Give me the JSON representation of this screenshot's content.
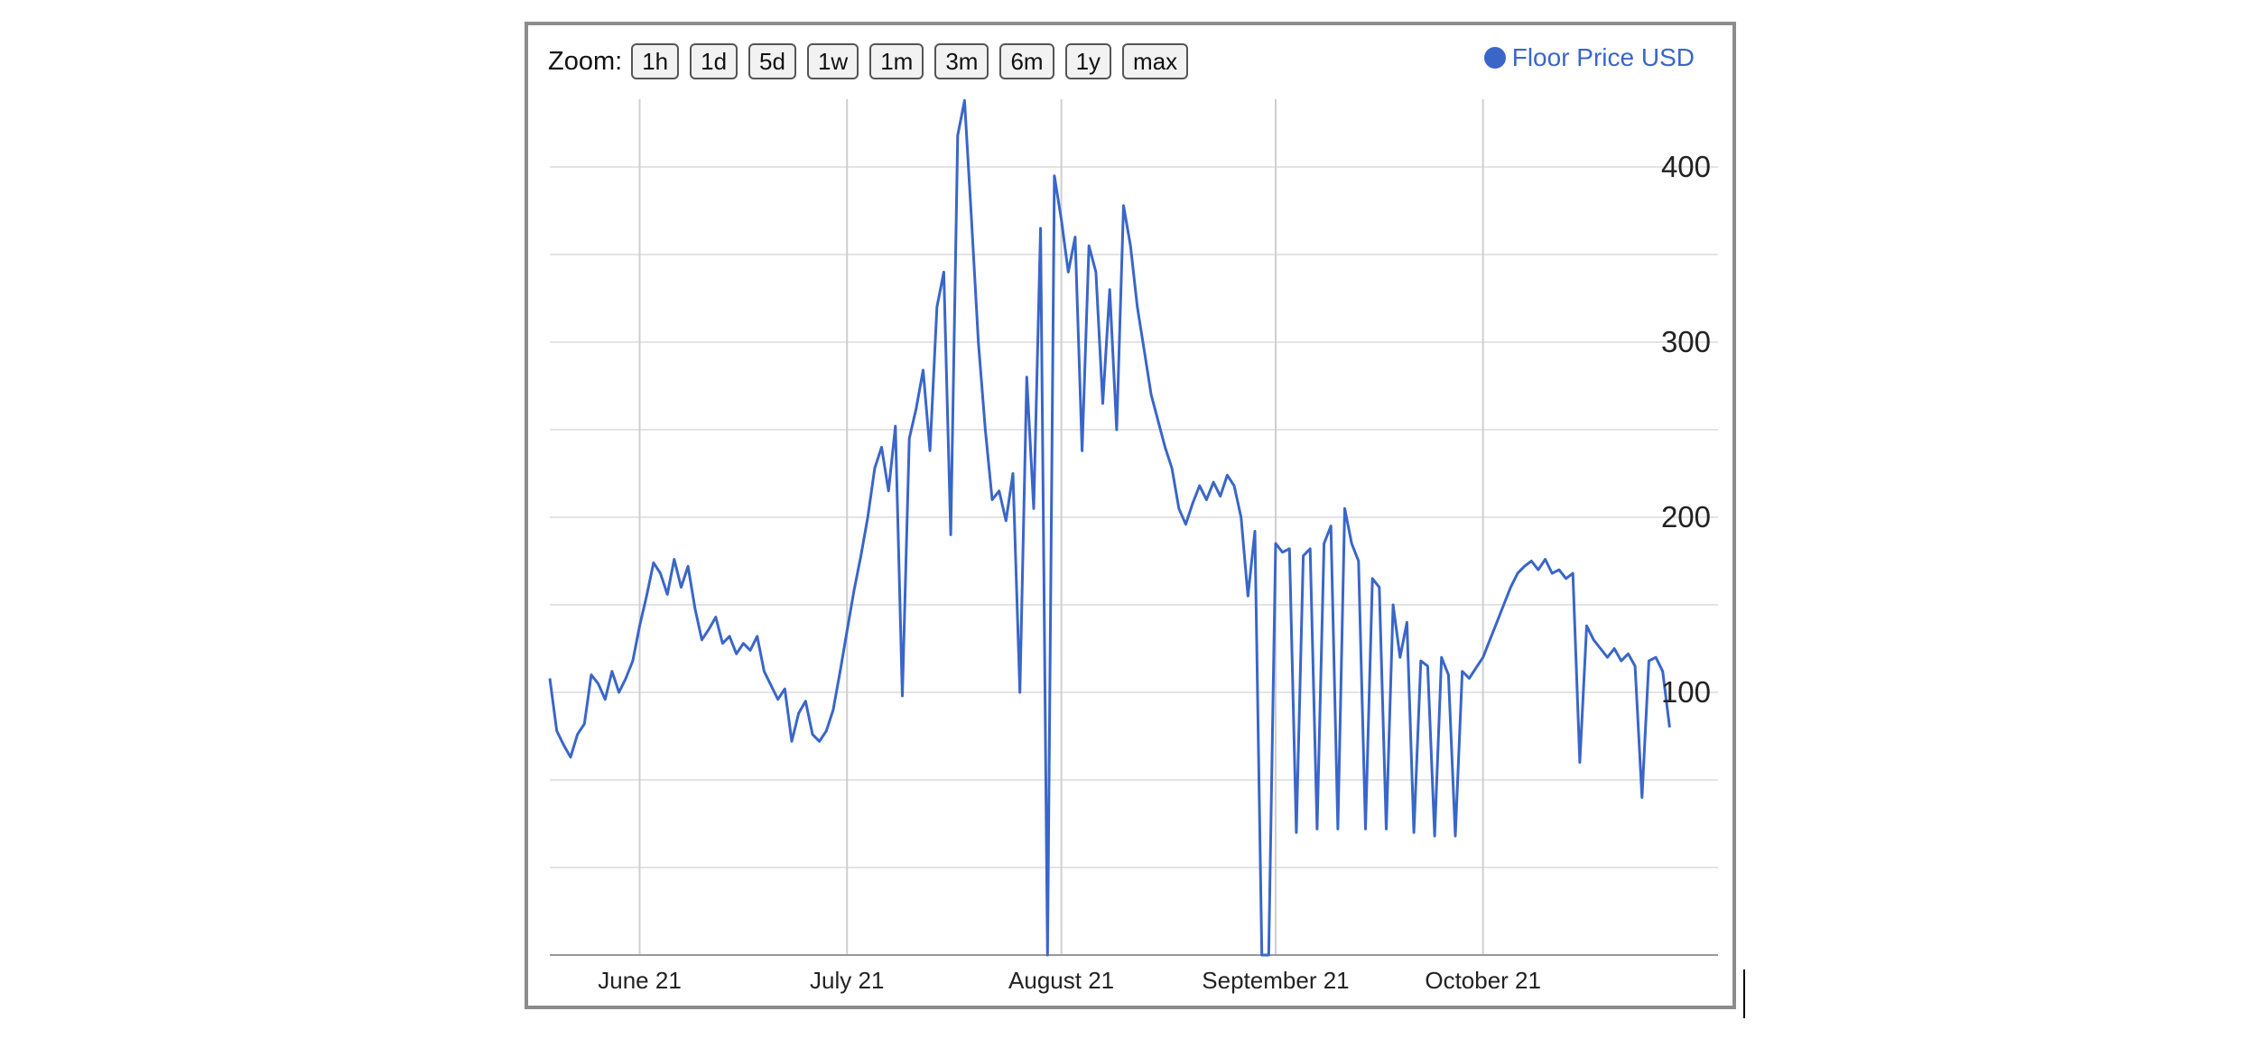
{
  "toolbar": {
    "zoom_label": "Zoom:",
    "buttons": [
      "1h",
      "1d",
      "5d",
      "1w",
      "1m",
      "3m",
      "6m",
      "1y",
      "max"
    ]
  },
  "legend": {
    "label": "Floor Price USD",
    "color": "#3a66c9"
  },
  "chart_data": {
    "type": "line",
    "title": "",
    "xlabel": "",
    "ylabel": "",
    "ylim": [
      -50,
      400
    ],
    "xlim": [
      "2021-05-31",
      "2021-11-16"
    ],
    "y_ticks": [
      100,
      200,
      300,
      400
    ],
    "x_ticks": [
      {
        "date": "2021-06-13",
        "label": "June 21"
      },
      {
        "date": "2021-07-13",
        "label": "July 21"
      },
      {
        "date": "2021-08-13",
        "label": "August 21"
      },
      {
        "date": "2021-09-13",
        "label": "September 21"
      },
      {
        "date": "2021-10-13",
        "label": "October 21"
      }
    ],
    "grid": true,
    "legend_position": "top-right",
    "series": [
      {
        "name": "Floor Price USD",
        "color": "#3a66c9",
        "points": [
          [
            "2021-05-31",
            108
          ],
          [
            "2021-06-01",
            78
          ],
          [
            "2021-06-02",
            70
          ],
          [
            "2021-06-03",
            63
          ],
          [
            "2021-06-04",
            76
          ],
          [
            "2021-06-05",
            82
          ],
          [
            "2021-06-06",
            110
          ],
          [
            "2021-06-07",
            105
          ],
          [
            "2021-06-08",
            96
          ],
          [
            "2021-06-09",
            112
          ],
          [
            "2021-06-10",
            100
          ],
          [
            "2021-06-11",
            108
          ],
          [
            "2021-06-12",
            118
          ],
          [
            "2021-06-13",
            138
          ],
          [
            "2021-06-14",
            155
          ],
          [
            "2021-06-15",
            174
          ],
          [
            "2021-06-16",
            168
          ],
          [
            "2021-06-17",
            156
          ],
          [
            "2021-06-18",
            176
          ],
          [
            "2021-06-19",
            160
          ],
          [
            "2021-06-20",
            172
          ],
          [
            "2021-06-21",
            148
          ],
          [
            "2021-06-22",
            130
          ],
          [
            "2021-06-23",
            136
          ],
          [
            "2021-06-24",
            143
          ],
          [
            "2021-06-25",
            128
          ],
          [
            "2021-06-26",
            132
          ],
          [
            "2021-06-27",
            122
          ],
          [
            "2021-06-28",
            128
          ],
          [
            "2021-06-29",
            124
          ],
          [
            "2021-06-30",
            132
          ],
          [
            "2021-07-01",
            112
          ],
          [
            "2021-07-02",
            104
          ],
          [
            "2021-07-03",
            96
          ],
          [
            "2021-07-04",
            102
          ],
          [
            "2021-07-05",
            72
          ],
          [
            "2021-07-06",
            88
          ],
          [
            "2021-07-07",
            95
          ],
          [
            "2021-07-08",
            76
          ],
          [
            "2021-07-09",
            72
          ],
          [
            "2021-07-10",
            78
          ],
          [
            "2021-07-11",
            90
          ],
          [
            "2021-07-12",
            112
          ],
          [
            "2021-07-13",
            135
          ],
          [
            "2021-07-14",
            158
          ],
          [
            "2021-07-15",
            178
          ],
          [
            "2021-07-16",
            200
          ],
          [
            "2021-07-17",
            228
          ],
          [
            "2021-07-18",
            240
          ],
          [
            "2021-07-19",
            215
          ],
          [
            "2021-07-20",
            252
          ],
          [
            "2021-07-21",
            98
          ],
          [
            "2021-07-22",
            245
          ],
          [
            "2021-07-23",
            262
          ],
          [
            "2021-07-24",
            284
          ],
          [
            "2021-07-25",
            238
          ],
          [
            "2021-07-26",
            320
          ],
          [
            "2021-07-27",
            340
          ],
          [
            "2021-07-28",
            190
          ],
          [
            "2021-07-29",
            418
          ],
          [
            "2021-07-30",
            438
          ],
          [
            "2021-07-31",
            370
          ],
          [
            "2021-08-01",
            300
          ],
          [
            "2021-08-02",
            250
          ],
          [
            "2021-08-03",
            210
          ],
          [
            "2021-08-04",
            215
          ],
          [
            "2021-08-05",
            198
          ],
          [
            "2021-08-06",
            225
          ],
          [
            "2021-08-07",
            100
          ],
          [
            "2021-08-08",
            280
          ],
          [
            "2021-08-09",
            205
          ],
          [
            "2021-08-10",
            365
          ],
          [
            "2021-08-11",
            -50
          ],
          [
            "2021-08-12",
            395
          ],
          [
            "2021-08-13",
            370
          ],
          [
            "2021-08-14",
            340
          ],
          [
            "2021-08-15",
            360
          ],
          [
            "2021-08-16",
            238
          ],
          [
            "2021-08-17",
            355
          ],
          [
            "2021-08-18",
            340
          ],
          [
            "2021-08-19",
            265
          ],
          [
            "2021-08-20",
            330
          ],
          [
            "2021-08-21",
            250
          ],
          [
            "2021-08-22",
            378
          ],
          [
            "2021-08-23",
            355
          ],
          [
            "2021-08-24",
            320
          ],
          [
            "2021-08-25",
            295
          ],
          [
            "2021-08-26",
            270
          ],
          [
            "2021-08-27",
            255
          ],
          [
            "2021-08-28",
            240
          ],
          [
            "2021-08-29",
            228
          ],
          [
            "2021-08-30",
            205
          ],
          [
            "2021-08-31",
            196
          ],
          [
            "2021-09-01",
            208
          ],
          [
            "2021-09-02",
            218
          ],
          [
            "2021-09-03",
            210
          ],
          [
            "2021-09-04",
            220
          ],
          [
            "2021-09-05",
            212
          ],
          [
            "2021-09-06",
            224
          ],
          [
            "2021-09-07",
            218
          ],
          [
            "2021-09-08",
            200
          ],
          [
            "2021-09-09",
            155
          ],
          [
            "2021-09-10",
            192
          ],
          [
            "2021-09-11",
            -50
          ],
          [
            "2021-09-12",
            -50
          ],
          [
            "2021-09-13",
            185
          ],
          [
            "2021-09-14",
            180
          ],
          [
            "2021-09-15",
            182
          ],
          [
            "2021-09-16",
            20
          ],
          [
            "2021-09-17",
            178
          ],
          [
            "2021-09-18",
            182
          ],
          [
            "2021-09-19",
            22
          ],
          [
            "2021-09-20",
            185
          ],
          [
            "2021-09-21",
            195
          ],
          [
            "2021-09-22",
            22
          ],
          [
            "2021-09-23",
            205
          ],
          [
            "2021-09-24",
            185
          ],
          [
            "2021-09-25",
            175
          ],
          [
            "2021-09-26",
            22
          ],
          [
            "2021-09-27",
            165
          ],
          [
            "2021-09-28",
            160
          ],
          [
            "2021-09-29",
            22
          ],
          [
            "2021-09-30",
            150
          ],
          [
            "2021-10-01",
            120
          ],
          [
            "2021-10-02",
            140
          ],
          [
            "2021-10-03",
            20
          ],
          [
            "2021-10-04",
            118
          ],
          [
            "2021-10-05",
            115
          ],
          [
            "2021-10-06",
            18
          ],
          [
            "2021-10-07",
            120
          ],
          [
            "2021-10-08",
            110
          ],
          [
            "2021-10-09",
            18
          ],
          [
            "2021-10-10",
            112
          ],
          [
            "2021-10-11",
            108
          ],
          [
            "2021-10-12",
            114
          ],
          [
            "2021-10-13",
            120
          ],
          [
            "2021-10-14",
            130
          ],
          [
            "2021-10-15",
            140
          ],
          [
            "2021-10-16",
            150
          ],
          [
            "2021-10-17",
            160
          ],
          [
            "2021-10-18",
            168
          ],
          [
            "2021-10-19",
            172
          ],
          [
            "2021-10-20",
            175
          ],
          [
            "2021-10-21",
            170
          ],
          [
            "2021-10-22",
            176
          ],
          [
            "2021-10-23",
            168
          ],
          [
            "2021-10-24",
            170
          ],
          [
            "2021-10-25",
            165
          ],
          [
            "2021-10-26",
            168
          ],
          [
            "2021-10-27",
            60
          ],
          [
            "2021-10-28",
            138
          ],
          [
            "2021-10-29",
            130
          ],
          [
            "2021-10-30",
            125
          ],
          [
            "2021-10-31",
            120
          ],
          [
            "2021-11-01",
            125
          ],
          [
            "2021-11-02",
            118
          ],
          [
            "2021-11-03",
            122
          ],
          [
            "2021-11-04",
            115
          ],
          [
            "2021-11-05",
            40
          ],
          [
            "2021-11-06",
            118
          ],
          [
            "2021-11-07",
            120
          ],
          [
            "2021-11-08",
            112
          ],
          [
            "2021-11-09",
            80
          ]
        ]
      }
    ]
  }
}
